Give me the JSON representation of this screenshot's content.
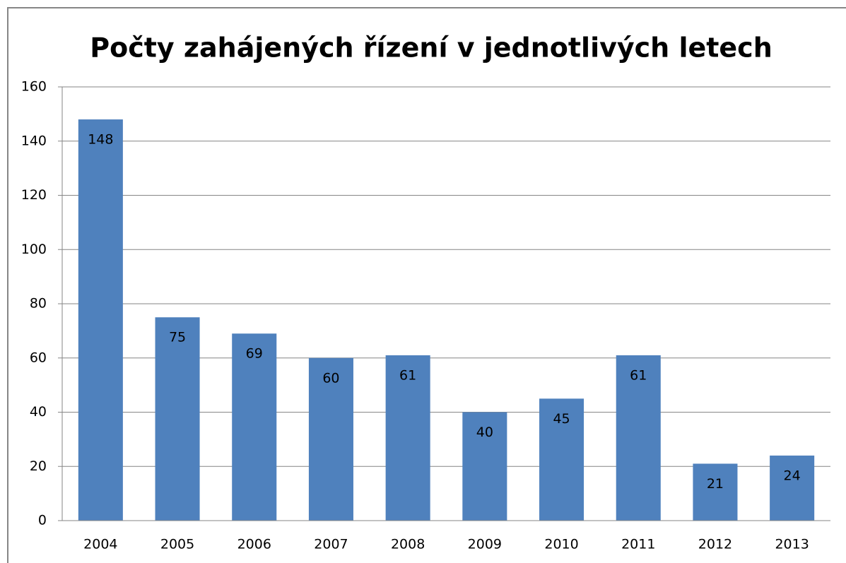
{
  "chart_data": {
    "type": "bar",
    "title": "Počty zahájených řízení v jednotlivých letech",
    "categories": [
      "2004",
      "2005",
      "2006",
      "2007",
      "2008",
      "2009",
      "2010",
      "2011",
      "2012",
      "2013"
    ],
    "values": [
      148,
      75,
      69,
      60,
      61,
      40,
      45,
      61,
      21,
      24
    ],
    "color": "#4f81bd",
    "ylim": [
      0,
      160
    ],
    "yticks": [
      0,
      20,
      40,
      60,
      80,
      100,
      120,
      140,
      160
    ],
    "grid": true
  }
}
